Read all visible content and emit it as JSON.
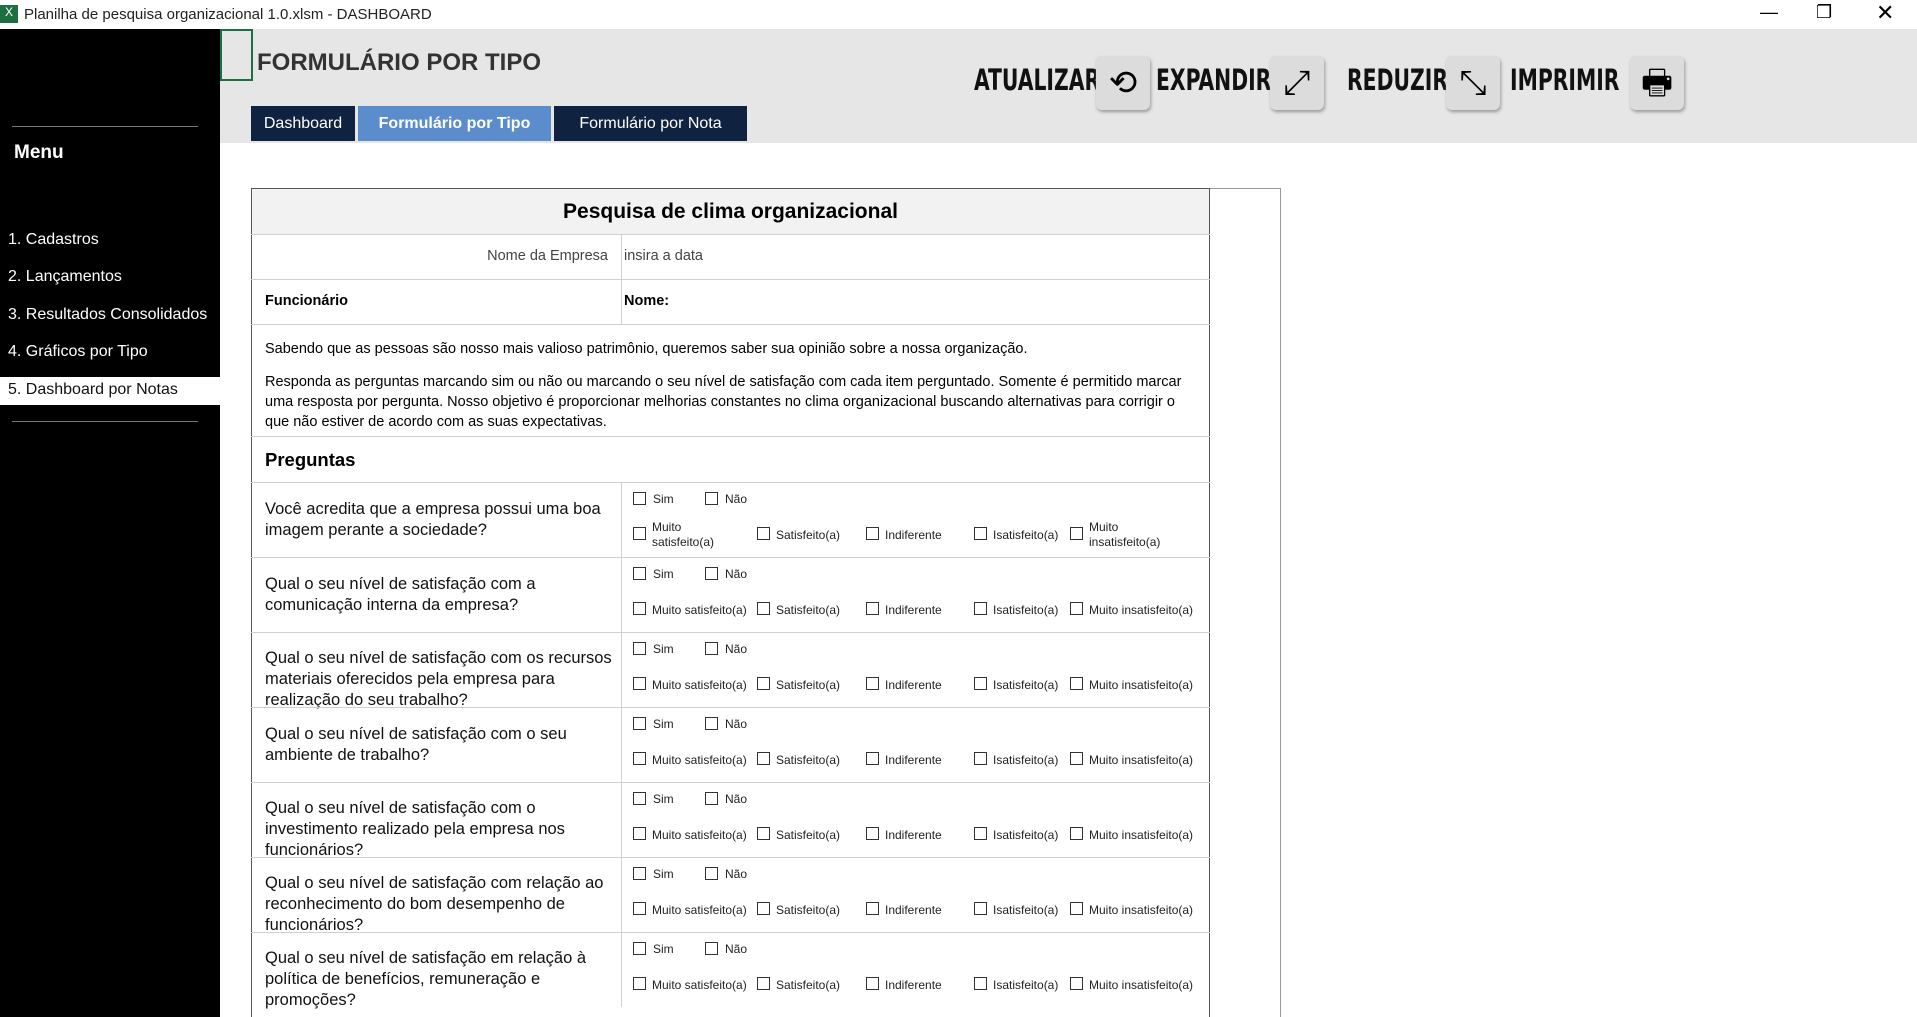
{
  "window": {
    "title": "Planilha de pesquisa organizacional 1.0.xlsm - DASHBOARD"
  },
  "header": {
    "title": "FORMULÁRIO POR TIPO",
    "buttons": [
      "ATUALIZAR",
      "EXPANDIR",
      "REDUZIR",
      "IMPRIMIR"
    ],
    "tabs": [
      "Dashboard",
      "Formulário por Tipo",
      "Formulário por Nota"
    ]
  },
  "menu": {
    "title": "Menu",
    "items": [
      "1. Cadastros",
      "2. Lançamentos",
      "3. Resultados Consolidados",
      "4. Gráficos por Tipo",
      "5. Dashboard por Notas"
    ]
  },
  "form": {
    "title": "Pesquisa de clima organizacional",
    "company_label": "Nome da Empresa",
    "company_value": "insira a data",
    "employee_label": "Funcionário",
    "name_label": "Nome:",
    "intro": [
      "Sabendo que as pessoas são nosso mais valioso patrimônio, queremos saber sua opinião sobre a nossa organização.",
      "Responda as perguntas marcando sim ou não ou marcando o seu nível de satisfação com cada item perguntado. Somente é permitido marcar uma resposta por pergunta. Nosso objetivo é proporcionar melhorias constantes no clima organizacional buscando alternativas para corrigir o que não estiver de acordo com as suas expectativas."
    ],
    "section": "Preguntas",
    "yes_no": [
      "Sim",
      "Não"
    ],
    "scale": [
      "Muito satisfeito(a)",
      "Satisfeito(a)",
      "Indiferente",
      "Isatisfeito(a)",
      "Muito insatisfeito(a)"
    ],
    "questions": [
      "Você acredita que a empresa possui uma boa imagem perante a sociedade?",
      "Qual o seu nível de satisfação com a comunicação interna da empresa?",
      "Qual o seu nível de satisfação com os recursos materiais oferecidos pela empresa para realização do seu trabalho?",
      "Qual o seu nível de satisfação com o seu ambiente de trabalho?",
      "Qual o seu nível de satisfação com o investimento realizado pela empresa nos funcionários?",
      "Qual o seu nível de satisfação com relação ao reconhecimento do bom desempenho de funcionários?",
      "Qual o seu nível de satisfação em relação à política de benefícios, remuneração e promoções?"
    ]
  }
}
